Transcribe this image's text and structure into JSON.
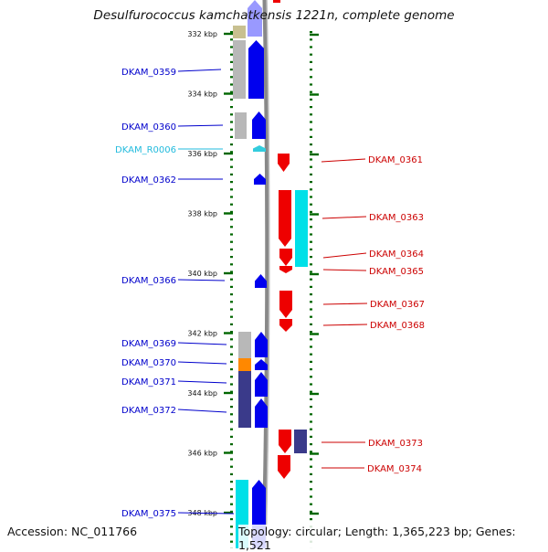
{
  "title": "Desulfurococcus kamchatkensis 1221n, complete genome",
  "footer": {
    "accession": "Accession: NC_011766",
    "topology": "Topology: circular; Length: 1,365,223 bp; Genes: 1,521"
  },
  "colors": {
    "forward_cds": "#0000ee",
    "reverse_cds": "#ee0000",
    "rna": "#33ccdd",
    "tick": "#006600",
    "cog_cyan": "#00e0e8",
    "cog_slate": "#3a3a8a",
    "cog_orange": "#ff8800",
    "cog_gray": "#b8b8b8",
    "cog_khaki": "#c8c090"
  },
  "ruler": [
    {
      "label": "332 kbp",
      "kbp": 332
    },
    {
      "label": "334 kbp",
      "kbp": 334
    },
    {
      "label": "336 kbp",
      "kbp": 336
    },
    {
      "label": "338 kbp",
      "kbp": 338
    },
    {
      "label": "340 kbp",
      "kbp": 340
    },
    {
      "label": "342 kbp",
      "kbp": 342
    },
    {
      "label": "344 kbp",
      "kbp": 344
    },
    {
      "label": "346 kbp",
      "kbp": 346
    },
    {
      "label": "348 kbp",
      "kbp": 348
    }
  ],
  "left_genes": [
    {
      "name": "DKAM_0359",
      "color": "#0000cc"
    },
    {
      "name": "DKAM_0360",
      "color": "#0000cc"
    },
    {
      "name": "DKAM_R0006",
      "color": "#22bbdd"
    },
    {
      "name": "DKAM_0362",
      "color": "#0000cc"
    },
    {
      "name": "DKAM_0366",
      "color": "#0000cc"
    },
    {
      "name": "DKAM_0369",
      "color": "#0000cc"
    },
    {
      "name": "DKAM_0370",
      "color": "#0000cc"
    },
    {
      "name": "DKAM_0371",
      "color": "#0000cc"
    },
    {
      "name": "DKAM_0372",
      "color": "#0000cc"
    },
    {
      "name": "DKAM_0375",
      "color": "#0000cc"
    }
  ],
  "right_genes": [
    {
      "name": "DKAM_0361",
      "color": "#cc0000"
    },
    {
      "name": "DKAM_0363",
      "color": "#cc0000"
    },
    {
      "name": "DKAM_0364",
      "color": "#cc0000"
    },
    {
      "name": "DKAM_0365",
      "color": "#cc0000"
    },
    {
      "name": "DKAM_0367",
      "color": "#cc0000"
    },
    {
      "name": "DKAM_0368",
      "color": "#cc0000"
    },
    {
      "name": "DKAM_0373",
      "color": "#cc0000"
    },
    {
      "name": "DKAM_0374",
      "color": "#cc0000"
    }
  ]
}
